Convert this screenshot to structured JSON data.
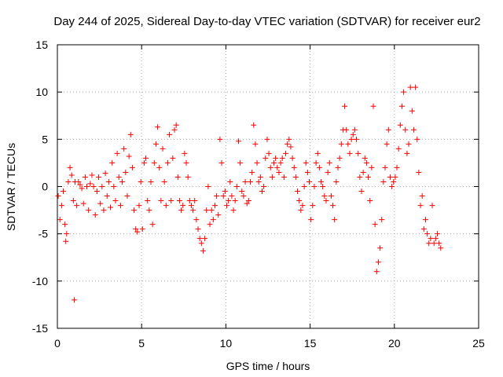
{
  "chart_data": {
    "type": "scatter",
    "title": "Day 244 of 2025, Sidereal Day-to-day VTEC variation (SDTVAR) for receiver eur2",
    "xlabel": "GPS time / hours",
    "ylabel": "SDTVAR / TECUs",
    "xlim": [
      0,
      25
    ],
    "ylim": [
      -15,
      15
    ],
    "xticks": [
      0,
      5,
      10,
      15,
      20,
      25
    ],
    "yticks": [
      -15,
      -10,
      -5,
      0,
      5,
      10,
      15
    ],
    "xtick_labels": [
      "0",
      "5",
      "10",
      "15",
      "20",
      "25"
    ],
    "ytick_labels": [
      "-15",
      "-10",
      "-5",
      "0",
      "5",
      "10",
      "15"
    ],
    "grid": true,
    "marker": "+",
    "color": "#ff0000",
    "series": [
      {
        "name": "eur2",
        "points": [
          [
            0.05,
            -1.0
          ],
          [
            0.15,
            -3.5
          ],
          [
            0.25,
            -2.0
          ],
          [
            0.35,
            -0.5
          ],
          [
            0.45,
            -4.0
          ],
          [
            0.5,
            -5.8
          ],
          [
            0.55,
            -5.0
          ],
          [
            0.65,
            0.5
          ],
          [
            0.75,
            2.0
          ],
          [
            0.85,
            1.2
          ],
          [
            0.95,
            -1.5
          ],
          [
            1.0,
            -12.0
          ],
          [
            1.05,
            0.5
          ],
          [
            1.15,
            -2.0
          ],
          [
            1.25,
            0.5
          ],
          [
            1.35,
            0.2
          ],
          [
            1.45,
            -0.2
          ],
          [
            1.55,
            -1.8
          ],
          [
            1.65,
            1.0
          ],
          [
            1.75,
            0.0
          ],
          [
            1.85,
            -2.5
          ],
          [
            1.95,
            0.3
          ],
          [
            2.05,
            1.2
          ],
          [
            2.15,
            0.0
          ],
          [
            2.25,
            -3.0
          ],
          [
            2.35,
            -0.5
          ],
          [
            2.45,
            1.0
          ],
          [
            2.55,
            -1.8
          ],
          [
            2.65,
            0.0
          ],
          [
            2.75,
            -2.5
          ],
          [
            2.85,
            1.4
          ],
          [
            2.95,
            -1.0
          ],
          [
            3.05,
            0.5
          ],
          [
            3.15,
            -2.2
          ],
          [
            3.25,
            2.5
          ],
          [
            3.35,
            0.0
          ],
          [
            3.45,
            -1.5
          ],
          [
            3.55,
            3.5
          ],
          [
            3.65,
            1.0
          ],
          [
            3.75,
            -2.0
          ],
          [
            3.85,
            0.5
          ],
          [
            3.95,
            4.0
          ],
          [
            4.05,
            1.5
          ],
          [
            4.15,
            -1.0
          ],
          [
            4.25,
            3.2
          ],
          [
            4.35,
            5.5
          ],
          [
            4.45,
            2.0
          ],
          [
            4.55,
            -2.5
          ],
          [
            4.65,
            -4.5
          ],
          [
            4.75,
            -4.8
          ],
          [
            4.85,
            -2.0
          ],
          [
            4.95,
            0.5
          ],
          [
            5.05,
            -4.5
          ],
          [
            5.15,
            2.5
          ],
          [
            5.25,
            3.0
          ],
          [
            5.35,
            -1.5
          ],
          [
            5.45,
            -2.5
          ],
          [
            5.55,
            0.5
          ],
          [
            5.65,
            -4.0
          ],
          [
            5.75,
            2.5
          ],
          [
            5.85,
            4.5
          ],
          [
            5.95,
            6.3
          ],
          [
            6.05,
            2.0
          ],
          [
            6.15,
            -1.5
          ],
          [
            6.25,
            4.0
          ],
          [
            6.35,
            0.5
          ],
          [
            6.45,
            -2.0
          ],
          [
            6.55,
            2.5
          ],
          [
            6.65,
            5.5
          ],
          [
            6.75,
            -1.5
          ],
          [
            6.85,
            3.0
          ],
          [
            6.95,
            6.0
          ],
          [
            7.05,
            6.5
          ],
          [
            7.15,
            1.0
          ],
          [
            7.25,
            -1.5
          ],
          [
            7.35,
            -2.5
          ],
          [
            7.45,
            -2.0
          ],
          [
            7.55,
            3.5
          ],
          [
            7.65,
            2.5
          ],
          [
            7.75,
            1.0
          ],
          [
            7.85,
            -1.5
          ],
          [
            7.95,
            -2.0
          ],
          [
            8.05,
            -2.5
          ],
          [
            8.15,
            -1.5
          ],
          [
            8.25,
            -3.5
          ],
          [
            8.35,
            -4.5
          ],
          [
            8.45,
            -5.5
          ],
          [
            8.55,
            -6.0
          ],
          [
            8.65,
            -6.8
          ],
          [
            8.75,
            -5.5
          ],
          [
            8.85,
            -2.5
          ],
          [
            8.95,
            0.0
          ],
          [
            9.05,
            -4.0
          ],
          [
            9.15,
            -2.5
          ],
          [
            9.25,
            -3.5
          ],
          [
            9.35,
            -2.0
          ],
          [
            9.45,
            -1.0
          ],
          [
            9.55,
            -3.0
          ],
          [
            9.65,
            5.0
          ],
          [
            9.75,
            2.5
          ],
          [
            9.85,
            -1.0
          ],
          [
            9.95,
            -0.5
          ],
          [
            10.05,
            -2.0
          ],
          [
            10.15,
            -1.5
          ],
          [
            10.25,
            0.5
          ],
          [
            10.35,
            -1.0
          ],
          [
            10.45,
            -2.5
          ],
          [
            10.55,
            -1.5
          ],
          [
            10.65,
            0.0
          ],
          [
            10.75,
            4.8
          ],
          [
            10.85,
            2.5
          ],
          [
            10.95,
            -0.5
          ],
          [
            11.05,
            -1.0
          ],
          [
            11.15,
            0.5
          ],
          [
            11.25,
            -1.8
          ],
          [
            11.35,
            -1.5
          ],
          [
            11.45,
            0.5
          ],
          [
            11.55,
            1.5
          ],
          [
            11.65,
            6.5
          ],
          [
            11.75,
            4.5
          ],
          [
            11.85,
            2.5
          ],
          [
            11.95,
            0.5
          ],
          [
            12.05,
            1.0
          ],
          [
            12.15,
            -0.5
          ],
          [
            12.25,
            0.0
          ],
          [
            12.35,
            3.0
          ],
          [
            12.45,
            5.0
          ],
          [
            12.55,
            3.5
          ],
          [
            12.65,
            2.0
          ],
          [
            12.75,
            1.0
          ],
          [
            12.85,
            2.5
          ],
          [
            12.95,
            3.0
          ],
          [
            13.05,
            2.0
          ],
          [
            13.15,
            1.5
          ],
          [
            13.25,
            2.5
          ],
          [
            13.35,
            3.0
          ],
          [
            13.45,
            1.0
          ],
          [
            13.55,
            3.5
          ],
          [
            13.65,
            4.5
          ],
          [
            13.75,
            5.0
          ],
          [
            13.85,
            4.2
          ],
          [
            13.95,
            3.0
          ],
          [
            14.05,
            2.0
          ],
          [
            14.15,
            1.0
          ],
          [
            14.25,
            -0.5
          ],
          [
            14.35,
            -1.5
          ],
          [
            14.45,
            -2.5
          ],
          [
            14.55,
            -2.0
          ],
          [
            14.65,
            0.0
          ],
          [
            14.75,
            2.5
          ],
          [
            14.85,
            1.5
          ],
          [
            14.95,
            0.5
          ],
          [
            15.05,
            -3.5
          ],
          [
            15.15,
            -2.0
          ],
          [
            15.25,
            0.0
          ],
          [
            15.35,
            2.5
          ],
          [
            15.45,
            3.5
          ],
          [
            15.55,
            2.0
          ],
          [
            15.65,
            0.5
          ],
          [
            15.75,
            0.0
          ],
          [
            15.85,
            -1.0
          ],
          [
            15.95,
            -1.5
          ],
          [
            16.05,
            1.5
          ],
          [
            16.15,
            2.5
          ],
          [
            16.25,
            -1.0
          ],
          [
            16.35,
            -2.0
          ],
          [
            16.45,
            -3.5
          ],
          [
            16.55,
            0.5
          ],
          [
            16.65,
            2.0
          ],
          [
            16.75,
            3.0
          ],
          [
            16.85,
            4.5
          ],
          [
            16.95,
            6.0
          ],
          [
            17.05,
            8.5
          ],
          [
            17.15,
            6.0
          ],
          [
            17.25,
            4.5
          ],
          [
            17.35,
            3.5
          ],
          [
            17.45,
            5.0
          ],
          [
            17.55,
            5.5
          ],
          [
            17.65,
            6.0
          ],
          [
            17.75,
            5.0
          ],
          [
            17.85,
            3.5
          ],
          [
            17.95,
            1.0
          ],
          [
            18.05,
            -0.5
          ],
          [
            18.15,
            1.5
          ],
          [
            18.25,
            3.0
          ],
          [
            18.35,
            2.5
          ],
          [
            18.45,
            1.0
          ],
          [
            18.55,
            -1.5
          ],
          [
            18.65,
            2.0
          ],
          [
            18.75,
            8.5
          ],
          [
            18.85,
            -4.0
          ],
          [
            18.95,
            -9.0
          ],
          [
            19.05,
            -8.0
          ],
          [
            19.15,
            -6.5
          ],
          [
            19.25,
            -3.5
          ],
          [
            19.35,
            0.5
          ],
          [
            19.45,
            2.0
          ],
          [
            19.55,
            4.5
          ],
          [
            19.65,
            6.0
          ],
          [
            19.75,
            1.0
          ],
          [
            19.85,
            0.0
          ],
          [
            19.95,
            0.5
          ],
          [
            20.05,
            1.0
          ],
          [
            20.15,
            2.0
          ],
          [
            20.25,
            4.0
          ],
          [
            20.35,
            6.5
          ],
          [
            20.45,
            8.5
          ],
          [
            20.55,
            10.0
          ],
          [
            20.65,
            6.0
          ],
          [
            20.75,
            3.5
          ],
          [
            20.85,
            4.5
          ],
          [
            20.95,
            10.5
          ],
          [
            21.05,
            8.0
          ],
          [
            21.15,
            6.0
          ],
          [
            21.25,
            10.5
          ],
          [
            21.35,
            5.0
          ],
          [
            21.45,
            1.5
          ],
          [
            21.55,
            -2.0
          ],
          [
            21.65,
            -1.0
          ],
          [
            21.75,
            -4.5
          ],
          [
            21.85,
            -3.5
          ],
          [
            21.95,
            -5.0
          ],
          [
            22.05,
            -6.0
          ],
          [
            22.15,
            -5.5
          ],
          [
            22.25,
            -2.0
          ],
          [
            22.35,
            -6.0
          ],
          [
            22.45,
            -5.5
          ],
          [
            22.55,
            -5.0
          ],
          [
            22.65,
            -6.0
          ],
          [
            22.75,
            -6.5
          ]
        ]
      }
    ]
  }
}
